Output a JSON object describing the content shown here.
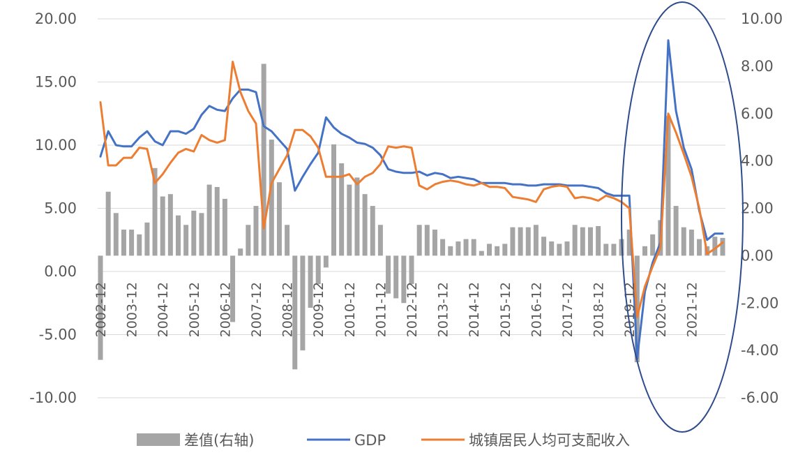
{
  "chart_data": {
    "type": "bar+line",
    "title": "",
    "legend_position": "bottom",
    "grid": true,
    "left_axis": {
      "ylim": [
        -10,
        20
      ],
      "ticks": [
        "20.00",
        "15.00",
        "10.00",
        "5.00",
        "0.00",
        "-5.00",
        "-10.00"
      ]
    },
    "right_axis": {
      "ylim": [
        -6,
        10
      ],
      "ticks": [
        "10.00",
        "8.00",
        "6.00",
        "4.00",
        "2.00",
        "0.00",
        "-2.00",
        "-4.00",
        "-6.00"
      ]
    },
    "x_tick_labels": [
      "2002-12",
      "2003-12",
      "2004-12",
      "2005-12",
      "2006-12",
      "2007-12",
      "2008-12",
      "2009-12",
      "2010-12",
      "2011-12",
      "2012-12",
      "2013-12",
      "2014-12",
      "2015-12",
      "2016-12",
      "2017-12",
      "2018-12",
      "2019-12",
      "2020-12",
      "2021-12"
    ],
    "x": [
      "2002-12",
      "2003-03",
      "2003-06",
      "2003-09",
      "2003-12",
      "2004-03",
      "2004-06",
      "2004-09",
      "2004-12",
      "2005-03",
      "2005-06",
      "2005-09",
      "2005-12",
      "2006-03",
      "2006-06",
      "2006-09",
      "2006-12",
      "2007-03",
      "2007-06",
      "2007-09",
      "2007-12",
      "2008-03",
      "2008-06",
      "2008-09",
      "2008-12",
      "2009-03",
      "2009-06",
      "2009-09",
      "2009-12",
      "2010-03",
      "2010-06",
      "2010-09",
      "2010-12",
      "2011-03",
      "2011-06",
      "2011-09",
      "2011-12",
      "2012-03",
      "2012-06",
      "2012-09",
      "2012-12",
      "2013-03",
      "2013-06",
      "2013-09",
      "2013-12",
      "2014-03",
      "2014-06",
      "2014-09",
      "2014-12",
      "2015-03",
      "2015-06",
      "2015-09",
      "2015-12",
      "2016-03",
      "2016-06",
      "2016-09",
      "2016-12",
      "2017-03",
      "2017-06",
      "2017-09",
      "2017-12",
      "2018-03",
      "2018-06",
      "2018-09",
      "2018-12",
      "2019-03",
      "2019-06",
      "2019-09",
      "2019-12",
      "2020-03",
      "2020-06",
      "2020-09",
      "2020-12",
      "2021-03",
      "2021-06",
      "2021-09",
      "2021-12",
      "2022-03",
      "2022-06",
      "2022-09",
      "2022-12"
    ],
    "series": [
      {
        "name": "差值(右轴)",
        "type": "bar",
        "axis": "right",
        "color": "#a5a5a5",
        "values": [
          -4.4,
          2.7,
          1.8,
          1.1,
          1.1,
          0.9,
          1.4,
          3.7,
          2.5,
          2.6,
          1.7,
          1.3,
          1.9,
          1.8,
          3.0,
          2.9,
          2.4,
          -2.8,
          0.3,
          1.3,
          2.1,
          8.1,
          4.9,
          3.1,
          1.3,
          -4.8,
          -4.0,
          -2.2,
          -1.2,
          -0.5,
          4.7,
          3.9,
          3.0,
          3.3,
          2.6,
          2.1,
          1.3,
          -1.6,
          -1.8,
          -2.0,
          -1.2,
          1.3,
          1.3,
          1.1,
          0.7,
          0.4,
          0.6,
          0.7,
          0.7,
          0.2,
          0.5,
          0.4,
          0.5,
          1.2,
          1.2,
          1.2,
          1.3,
          0.8,
          0.6,
          0.5,
          0.6,
          1.3,
          1.2,
          1.2,
          1.25,
          0.5,
          0.5,
          0.7,
          1.1,
          -4.5,
          0.4,
          0.9,
          1.5,
          5.9,
          2.1,
          1.2,
          1.1,
          0.7,
          0.4,
          0.8,
          0.75
        ]
      },
      {
        "name": "GDP",
        "type": "line",
        "axis": "left",
        "color": "#4472c4",
        "values": [
          9.1,
          11.1,
          10.0,
          9.9,
          9.9,
          10.6,
          11.1,
          10.3,
          10.0,
          11.1,
          11.1,
          10.9,
          11.3,
          12.4,
          13.1,
          12.8,
          12.7,
          13.7,
          14.4,
          14.4,
          14.2,
          11.5,
          11.1,
          10.4,
          9.7,
          6.4,
          7.5,
          8.5,
          9.4,
          12.2,
          11.4,
          10.9,
          10.6,
          10.2,
          10.1,
          9.8,
          9.2,
          8.1,
          7.9,
          7.8,
          7.8,
          7.9,
          7.6,
          7.8,
          7.7,
          7.4,
          7.5,
          7.4,
          7.3,
          7.0,
          7.0,
          7.0,
          7.0,
          6.9,
          6.9,
          6.8,
          6.8,
          6.9,
          6.9,
          6.9,
          6.8,
          6.8,
          6.8,
          6.7,
          6.6,
          6.2,
          6.0,
          6.0,
          6.0,
          -6.9,
          -1.6,
          0.7,
          2.3,
          18.3,
          12.7,
          9.8,
          8.1,
          4.8,
          2.5,
          3.0,
          3.0
        ]
      },
      {
        "name": "城镇居民人均可支配收入",
        "type": "line",
        "axis": "left",
        "color": "#ed7d31",
        "values": [
          13.4,
          8.4,
          8.4,
          9.0,
          9.0,
          9.8,
          9.7,
          7.0,
          7.7,
          8.6,
          9.4,
          9.7,
          9.5,
          10.8,
          10.4,
          10.2,
          10.4,
          16.6,
          14.2,
          12.7,
          11.7,
          3.4,
          7.0,
          8.1,
          9.2,
          11.2,
          11.2,
          10.7,
          9.8,
          7.5,
          7.5,
          7.5,
          7.7,
          6.9,
          7.5,
          7.8,
          8.5,
          9.9,
          9.8,
          9.9,
          9.8,
          6.8,
          6.5,
          6.9,
          7.1,
          7.2,
          7.1,
          6.9,
          6.8,
          7.0,
          6.7,
          6.7,
          6.6,
          5.9,
          5.8,
          5.7,
          5.5,
          6.5,
          6.7,
          6.8,
          6.7,
          5.8,
          5.9,
          5.8,
          5.6,
          6.0,
          5.8,
          5.5,
          5.0,
          -3.6,
          -1.2,
          0.4,
          1.9,
          12.5,
          11.0,
          9.3,
          7.5,
          5.0,
          1.4,
          1.8,
          2.3
        ]
      }
    ]
  },
  "legend": [
    {
      "label": "差值(右轴)",
      "kind": "bar",
      "color": "#a5a5a5"
    },
    {
      "label": "GDP",
      "kind": "line",
      "color": "#4472c4"
    },
    {
      "label": "城镇居民人均可支配收入",
      "kind": "line",
      "color": "#ed7d31"
    }
  ],
  "highlight_ellipse_color": "#2e4b8c"
}
